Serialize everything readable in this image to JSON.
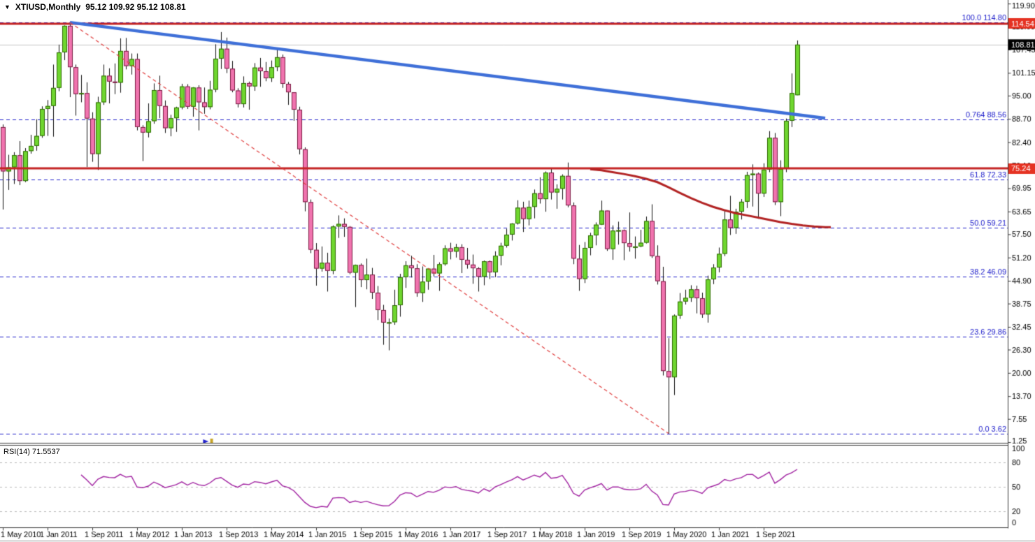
{
  "header": {
    "dropdown_icon": "▼",
    "symbol": "XTIUSD,Monthly",
    "ohlc": "95.12 109.92 95.12 108.81"
  },
  "indicator": {
    "label": "RSI(14) 71.5537",
    "name": "RSI",
    "period": 14,
    "value": 71.5537
  },
  "colors": {
    "bg": "#ffffff",
    "text": "#000000",
    "axis_line": "#3a3a3a",
    "separator": "#3a3a3a",
    "up_fill": "#6fd62f",
    "up_border": "#2e6b00",
    "down_fill": "#f073ae",
    "down_border": "#7a1b42",
    "wick": "#111111",
    "red_line": "#c42222",
    "badge_red": "#e53222",
    "badge_black": "#000000",
    "badge_text": "#ffffff",
    "trend_blue": "#3e6fd8",
    "trend_red_dashed": "#e03c3c",
    "ma_line": "#b22222",
    "fib_blue": "#2121cc",
    "rsi_line": "#a020a0",
    "rsi_grid": "#b9b9b9",
    "current_price_line": "#c4c4c4",
    "marker_yellow": "#c8a528"
  },
  "chart_data": {
    "type": "candlestick",
    "symbol": "XTIUSD",
    "timeframe": "Monthly",
    "x_axis_labels": [
      {
        "text": "1 May 2010",
        "m": 0
      },
      {
        "text": "1 Jan 2011",
        "m": 8
      },
      {
        "text": "1 Sep 2011",
        "m": 16
      },
      {
        "text": "1 May 2012",
        "m": 24
      },
      {
        "text": "1 Jan 2013",
        "m": 32
      },
      {
        "text": "1 Sep 2013",
        "m": 40
      },
      {
        "text": "1 May 2014",
        "m": 48
      },
      {
        "text": "1 Jan 2015",
        "m": 56
      },
      {
        "text": "1 Sep 2015",
        "m": 64
      },
      {
        "text": "1 May 2016",
        "m": 72
      },
      {
        "text": "1 Jan 2017",
        "m": 80
      },
      {
        "text": "1 Sep 2017",
        "m": 88
      },
      {
        "text": "1 May 2018",
        "m": 96
      },
      {
        "text": "1 Jan 2019",
        "m": 104
      },
      {
        "text": "1 Sep 2019",
        "m": 112
      },
      {
        "text": "1 May 2020",
        "m": 120
      },
      {
        "text": "1 Jan 2021",
        "m": 128
      },
      {
        "text": "1 Sep 2021",
        "m": 136
      }
    ],
    "y_axis_ticks": [
      119.9,
      113.6,
      107.45,
      101.15,
      95.0,
      88.7,
      82.4,
      76.1,
      69.95,
      63.65,
      57.5,
      51.2,
      44.9,
      38.75,
      32.45,
      26.3,
      20.0,
      13.7,
      7.55,
      1.25
    ],
    "candles": [
      [
        86.5,
        87.2,
        64.2,
        74.5
      ],
      [
        74.5,
        79.0,
        69.5,
        75.6
      ],
      [
        75.6,
        79.7,
        71.1,
        78.9
      ],
      [
        78.9,
        82.7,
        70.8,
        71.9
      ],
      [
        71.9,
        80.8,
        71.6,
        80.0
      ],
      [
        80.0,
        84.4,
        79.3,
        81.4
      ],
      [
        81.4,
        88.6,
        80.1,
        84.1
      ],
      [
        84.1,
        92.1,
        83.6,
        91.4
      ],
      [
        91.4,
        93.8,
        84.1,
        92.2
      ],
      [
        92.2,
        103.4,
        83.9,
        97.1
      ],
      [
        97.1,
        108.8,
        96.2,
        106.7
      ],
      [
        106.7,
        114.0,
        104.6,
        113.9
      ],
      [
        113.9,
        114.8,
        94.6,
        102.7
      ],
      [
        102.7,
        103.4,
        89.6,
        95.4
      ],
      [
        95.4,
        100.6,
        93.2,
        95.7
      ],
      [
        95.7,
        98.6,
        75.7,
        88.8
      ],
      [
        88.8,
        90.5,
        77.1,
        79.2
      ],
      [
        79.2,
        94.7,
        74.9,
        93.2
      ],
      [
        93.2,
        103.4,
        92.5,
        100.4
      ],
      [
        100.4,
        102.4,
        92.9,
        98.8
      ],
      [
        98.8,
        103.7,
        95.4,
        98.5
      ],
      [
        98.5,
        110.5,
        95.8,
        107.1
      ],
      [
        107.1,
        110.6,
        102.1,
        103.0
      ],
      [
        103.0,
        106.4,
        100.7,
        104.9
      ],
      [
        104.9,
        106.4,
        85.6,
        86.5
      ],
      [
        86.5,
        87.0,
        77.3,
        85.0
      ],
      [
        85.0,
        92.9,
        83.7,
        88.1
      ],
      [
        88.1,
        98.3,
        87.4,
        96.5
      ],
      [
        96.5,
        100.4,
        88.9,
        92.2
      ],
      [
        92.2,
        93.7,
        84.9,
        86.2
      ],
      [
        86.2,
        89.8,
        84.0,
        88.9
      ],
      [
        88.9,
        92.0,
        85.2,
        91.8
      ],
      [
        91.8,
        98.2,
        91.3,
        97.5
      ],
      [
        97.5,
        98.1,
        91.4,
        92.0
      ],
      [
        92.0,
        97.3,
        89.3,
        97.2
      ],
      [
        97.2,
        97.8,
        85.6,
        93.2
      ],
      [
        93.2,
        97.2,
        90.1,
        91.9
      ],
      [
        91.9,
        99.0,
        91.3,
        96.6
      ],
      [
        96.6,
        108.9,
        95.9,
        105.0
      ],
      [
        105.0,
        112.2,
        102.2,
        107.7
      ],
      [
        107.7,
        110.7,
        101.1,
        102.3
      ],
      [
        102.3,
        104.4,
        95.9,
        96.4
      ],
      [
        96.4,
        97.0,
        91.8,
        92.7
      ],
      [
        92.7,
        100.2,
        91.8,
        98.4
      ],
      [
        98.4,
        98.8,
        91.2,
        97.5
      ],
      [
        97.5,
        103.8,
        96.3,
        102.6
      ],
      [
        102.6,
        105.2,
        97.4,
        101.6
      ],
      [
        101.6,
        104.1,
        98.9,
        99.7
      ],
      [
        99.7,
        104.5,
        98.7,
        102.7
      ],
      [
        102.7,
        107.7,
        101.6,
        105.4
      ],
      [
        105.4,
        106.1,
        97.1,
        98.2
      ],
      [
        98.2,
        98.7,
        92.5,
        95.9
      ],
      [
        95.9,
        95.9,
        88.2,
        91.2
      ],
      [
        91.2,
        92.0,
        79.1,
        80.5
      ],
      [
        80.5,
        81.0,
        63.7,
        66.2
      ],
      [
        66.2,
        66.9,
        52.4,
        53.3
      ],
      [
        53.3,
        55.1,
        43.6,
        48.2
      ],
      [
        48.2,
        54.2,
        47.4,
        49.8
      ],
      [
        49.8,
        52.5,
        42.0,
        47.6
      ],
      [
        47.6,
        59.9,
        46.7,
        59.6
      ],
      [
        59.6,
        62.6,
        56.5,
        60.3
      ],
      [
        60.3,
        61.8,
        56.8,
        59.5
      ],
      [
        59.5,
        59.7,
        46.7,
        47.1
      ],
      [
        47.1,
        49.3,
        37.8,
        49.2
      ],
      [
        49.2,
        49.6,
        43.2,
        45.1
      ],
      [
        45.1,
        50.9,
        42.6,
        46.6
      ],
      [
        46.6,
        48.4,
        40.0,
        41.7
      ],
      [
        41.7,
        43.5,
        34.3,
        37.0
      ],
      [
        37.0,
        38.4,
        27.6,
        33.6
      ],
      [
        33.6,
        34.7,
        26.1,
        33.7
      ],
      [
        33.7,
        42.5,
        33.0,
        38.3
      ],
      [
        38.3,
        46.8,
        35.2,
        45.9
      ],
      [
        45.9,
        50.2,
        43.0,
        49.1
      ],
      [
        49.1,
        51.7,
        45.8,
        48.3
      ],
      [
        48.3,
        49.4,
        40.6,
        41.6
      ],
      [
        41.6,
        48.8,
        39.2,
        44.7
      ],
      [
        44.7,
        48.3,
        42.5,
        48.2
      ],
      [
        48.2,
        51.9,
        46.1,
        46.9
      ],
      [
        46.9,
        49.9,
        42.2,
        49.4
      ],
      [
        49.4,
        54.5,
        49.0,
        53.7
      ],
      [
        53.7,
        55.2,
        50.7,
        52.8
      ],
      [
        52.8,
        54.9,
        51.2,
        54.0
      ],
      [
        54.0,
        54.8,
        47.0,
        50.6
      ],
      [
        50.6,
        53.8,
        48.2,
        49.3
      ],
      [
        49.3,
        52.0,
        44.1,
        48.3
      ],
      [
        48.3,
        48.6,
        42.0,
        46.0
      ],
      [
        46.0,
        50.4,
        43.7,
        50.2
      ],
      [
        50.2,
        50.4,
        45.4,
        47.2
      ],
      [
        47.2,
        52.9,
        45.9,
        51.7
      ],
      [
        51.7,
        55.2,
        49.1,
        54.4
      ],
      [
        54.4,
        59.0,
        53.9,
        57.4
      ],
      [
        57.4,
        60.5,
        55.8,
        60.4
      ],
      [
        60.4,
        66.7,
        60.1,
        64.7
      ],
      [
        64.7,
        66.3,
        58.1,
        61.6
      ],
      [
        61.6,
        66.6,
        59.9,
        64.9
      ],
      [
        64.9,
        69.6,
        61.8,
        68.6
      ],
      [
        68.6,
        72.9,
        65.8,
        67.0
      ],
      [
        67.0,
        74.5,
        63.6,
        74.2
      ],
      [
        74.2,
        75.3,
        66.9,
        68.8
      ],
      [
        68.8,
        71.0,
        64.4,
        69.8
      ],
      [
        69.8,
        73.7,
        66.9,
        73.3
      ],
      [
        73.3,
        76.9,
        64.8,
        65.3
      ],
      [
        65.3,
        66.1,
        49.4,
        50.9
      ],
      [
        50.9,
        54.6,
        42.2,
        45.4
      ],
      [
        45.4,
        55.4,
        44.3,
        53.8
      ],
      [
        53.8,
        57.9,
        51.8,
        57.2
      ],
      [
        57.2,
        60.7,
        54.5,
        60.1
      ],
      [
        60.1,
        66.6,
        60.0,
        63.9
      ],
      [
        63.9,
        63.9,
        53.0,
        53.5
      ],
      [
        53.5,
        59.9,
        50.6,
        58.5
      ],
      [
        58.5,
        60.9,
        54.7,
        58.6
      ],
      [
        58.6,
        58.8,
        50.5,
        55.1
      ],
      [
        55.1,
        63.4,
        52.8,
        54.1
      ],
      [
        54.1,
        56.9,
        50.9,
        54.2
      ],
      [
        54.2,
        58.7,
        54.0,
        55.2
      ],
      [
        55.2,
        62.3,
        55.0,
        61.1
      ],
      [
        61.1,
        65.6,
        51.1,
        51.6
      ],
      [
        51.6,
        54.5,
        43.9,
        44.8
      ],
      [
        44.8,
        48.7,
        19.3,
        20.5
      ],
      [
        20.5,
        29.4,
        3.6,
        18.8
      ],
      [
        18.8,
        35.8,
        14.0,
        35.5
      ],
      [
        35.5,
        41.6,
        34.6,
        39.3
      ],
      [
        39.3,
        42.5,
        38.5,
        40.3
      ],
      [
        40.3,
        43.7,
        39.2,
        42.6
      ],
      [
        42.6,
        43.6,
        36.1,
        40.2
      ],
      [
        40.2,
        41.7,
        34.9,
        35.8
      ],
      [
        35.8,
        46.3,
        33.6,
        45.3
      ],
      [
        45.3,
        49.4,
        44.0,
        48.5
      ],
      [
        48.5,
        53.9,
        47.2,
        52.2
      ],
      [
        52.2,
        63.8,
        51.6,
        61.5
      ],
      [
        61.5,
        67.9,
        57.3,
        59.2
      ],
      [
        59.2,
        64.4,
        57.6,
        63.6
      ],
      [
        63.6,
        67.0,
        61.5,
        66.3
      ],
      [
        66.3,
        74.4,
        64.6,
        73.5
      ],
      [
        73.5,
        76.4,
        65.0,
        73.9
      ],
      [
        73.9,
        74.2,
        61.7,
        68.5
      ],
      [
        68.5,
        76.7,
        67.6,
        75.0
      ],
      [
        75.0,
        85.4,
        74.3,
        83.6
      ],
      [
        83.6,
        84.9,
        65.4,
        66.2
      ],
      [
        66.2,
        77.5,
        62.4,
        75.2
      ],
      [
        75.2,
        88.8,
        74.3,
        88.2
      ],
      [
        88.2,
        101.0,
        86.5,
        95.7
      ],
      [
        95.12,
        109.92,
        95.12,
        108.81
      ]
    ],
    "fib_retracement": {
      "levels": [
        {
          "label": "100.0",
          "value": 114.8
        },
        {
          "label": "0.764",
          "value": 88.56
        },
        {
          "label": "61.8",
          "value": 72.33
        },
        {
          "label": "50.0",
          "value": 59.21
        },
        {
          "label": "38.2",
          "value": 46.09
        },
        {
          "label": "23.6",
          "value": 29.86
        },
        {
          "label": "0.0",
          "value": 3.62
        }
      ]
    },
    "horizontal_lines": [
      {
        "value": 114.54,
        "label": "114.54"
      },
      {
        "value": 75.24,
        "label": "75.24"
      }
    ],
    "current_price": {
      "value": 108.81,
      "label": "108.81"
    },
    "trendlines": [
      {
        "name": "descending-resistance-trendline",
        "style": "solid",
        "width": 4.5,
        "color": "trend_blue",
        "from": {
          "m": 12,
          "price": 114.8
        },
        "to": {
          "m": 147,
          "price": 88.9
        }
      },
      {
        "name": "fib-diagonal-line",
        "style": "dashed",
        "width": 1.2,
        "color": "trend_red_dashed",
        "from": {
          "m": 12,
          "price": 114.8
        },
        "to": {
          "m": 119,
          "price": 3.62
        }
      }
    ],
    "ma_line": {
      "name": "long-period-moving-average",
      "points": [
        [
          105,
          75.1
        ],
        [
          107,
          74.8
        ],
        [
          109,
          74.3
        ],
        [
          111,
          73.8
        ],
        [
          113,
          73.2
        ],
        [
          115,
          72.5
        ],
        [
          117,
          71.6
        ],
        [
          119,
          70.2
        ],
        [
          121,
          68.7
        ],
        [
          123,
          67.3
        ],
        [
          125,
          66.0
        ],
        [
          127,
          64.9
        ],
        [
          129,
          64.0
        ],
        [
          131,
          63.2
        ],
        [
          133,
          62.6
        ],
        [
          135,
          62.0
        ],
        [
          137,
          61.4
        ],
        [
          139,
          60.8
        ],
        [
          141,
          60.3
        ],
        [
          143,
          59.9
        ],
        [
          145,
          59.6
        ],
        [
          147,
          59.4
        ],
        [
          148,
          59.4
        ]
      ]
    },
    "markers": [
      {
        "name": "blue-arrow-marker",
        "m": 36.3,
        "price_y": 632
      },
      {
        "name": "yellow-flag-marker",
        "m": 37.2,
        "price_y": 632
      }
    ],
    "rsi": {
      "period": 14,
      "current": 71.5537,
      "levels": [
        80,
        50,
        20
      ],
      "axis_labels": [
        100,
        80,
        50,
        20,
        0
      ]
    }
  }
}
